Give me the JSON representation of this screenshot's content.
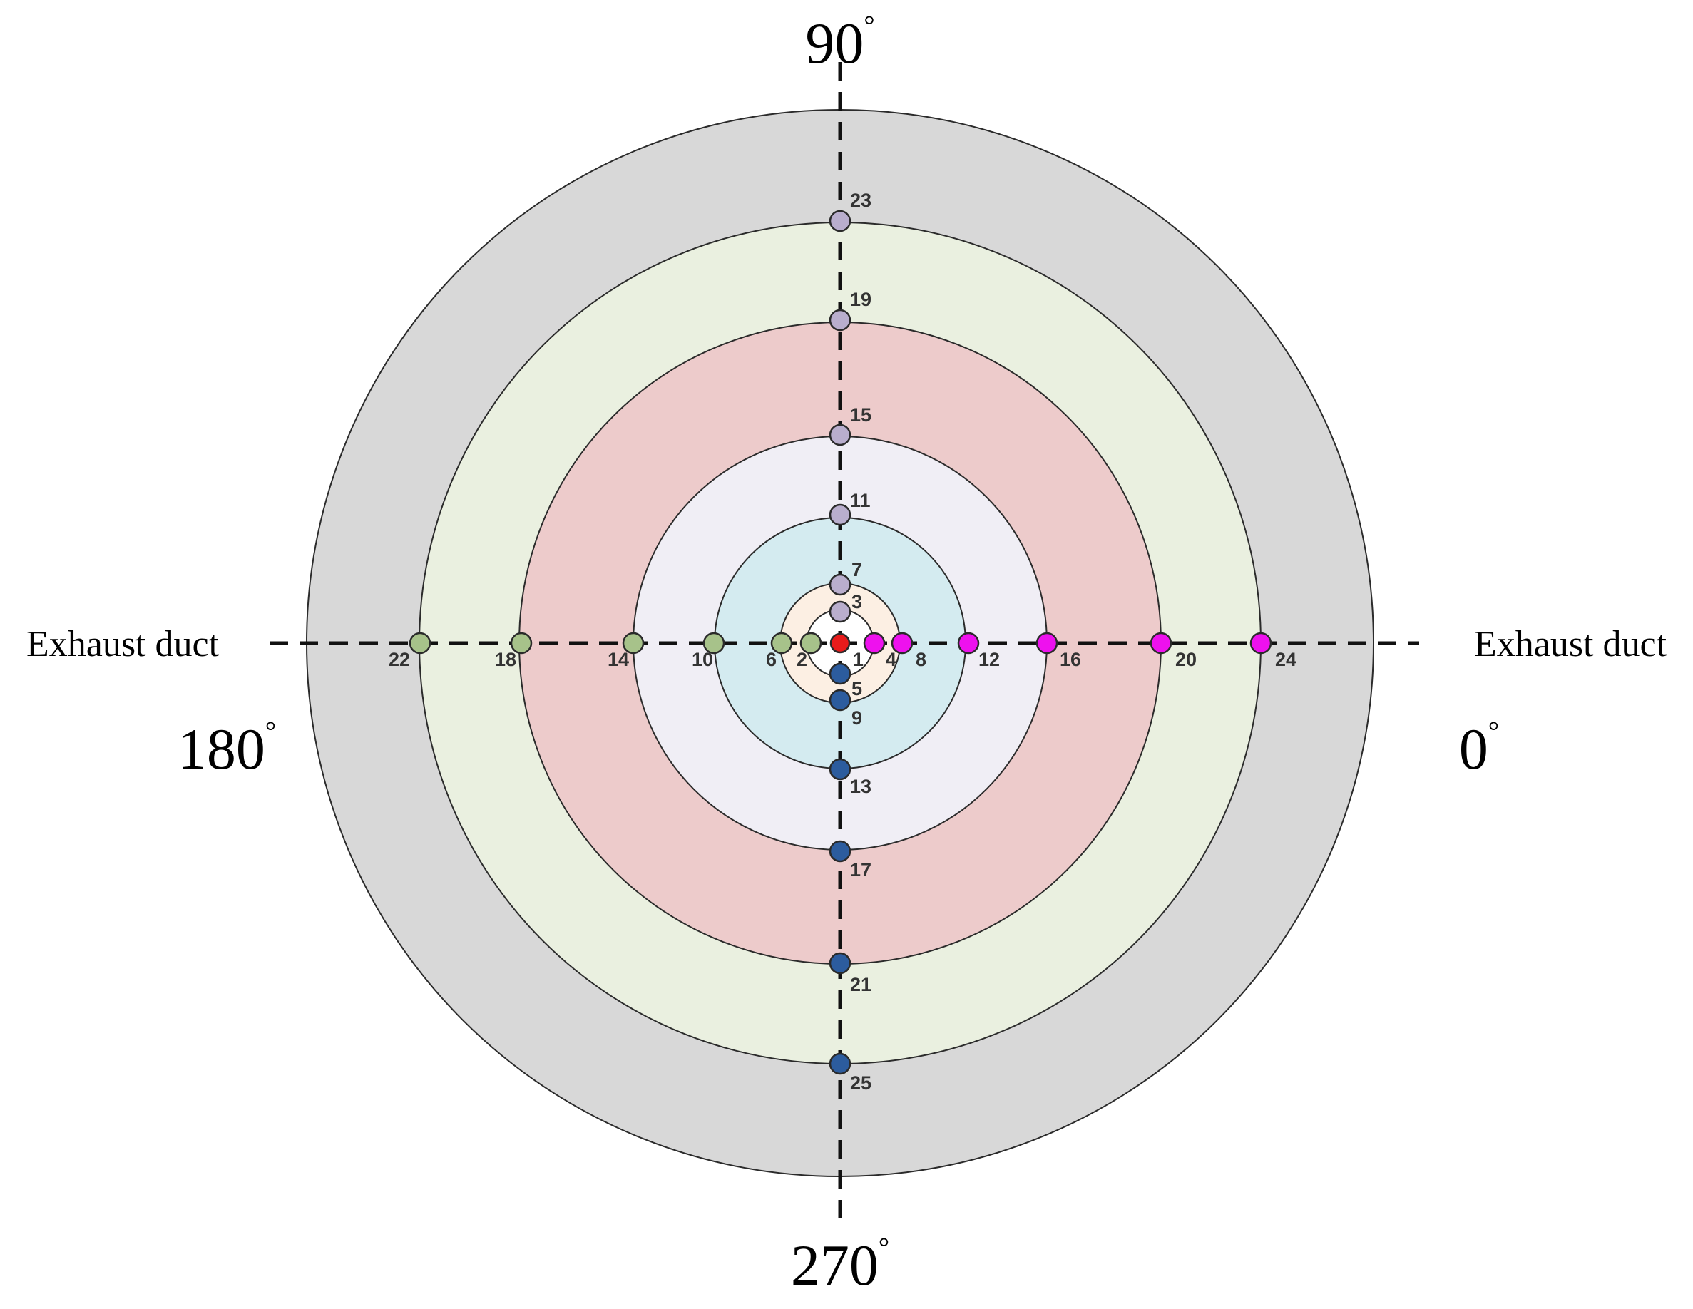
{
  "colors": {
    "ring_fills": [
      "#d8d8d8",
      "#eaf0e0",
      "#edcbcb",
      "#f0eef5",
      "#d4ebf0",
      "#fcefe3",
      "#ffffff"
    ],
    "center": "#e81b1b",
    "up_arm": "#b9aecd",
    "down_arm": "#2c5c9e",
    "left_arm": "#a7c28a",
    "right_arm": "#ee11ee"
  },
  "labels": {
    "angle_90": "90",
    "angle_180": "180",
    "angle_0": "0",
    "angle_270": "270",
    "degree_mark": "°",
    "duct_left": "Exhaust duct",
    "duct_right": "Exhaust duct"
  },
  "points": [
    {
      "id": "1",
      "arm": "center"
    },
    {
      "id": "2",
      "arm": "left"
    },
    {
      "id": "3",
      "arm": "up"
    },
    {
      "id": "4",
      "arm": "right"
    },
    {
      "id": "5",
      "arm": "down"
    },
    {
      "id": "6",
      "arm": "left"
    },
    {
      "id": "7",
      "arm": "up"
    },
    {
      "id": "8",
      "arm": "right"
    },
    {
      "id": "9",
      "arm": "down"
    },
    {
      "id": "10",
      "arm": "left"
    },
    {
      "id": "11",
      "arm": "up"
    },
    {
      "id": "12",
      "arm": "right"
    },
    {
      "id": "13",
      "arm": "down"
    },
    {
      "id": "14",
      "arm": "left"
    },
    {
      "id": "15",
      "arm": "up"
    },
    {
      "id": "16",
      "arm": "right"
    },
    {
      "id": "17",
      "arm": "down"
    },
    {
      "id": "18",
      "arm": "left"
    },
    {
      "id": "19",
      "arm": "up"
    },
    {
      "id": "20",
      "arm": "right"
    },
    {
      "id": "21",
      "arm": "down"
    },
    {
      "id": "22",
      "arm": "left"
    },
    {
      "id": "23",
      "arm": "up"
    },
    {
      "id": "24",
      "arm": "right"
    },
    {
      "id": "25",
      "arm": "down"
    }
  ]
}
